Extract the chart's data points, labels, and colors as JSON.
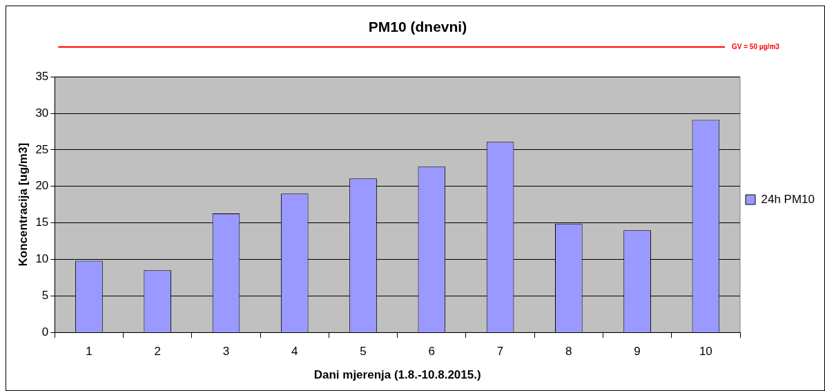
{
  "chart_data": {
    "type": "bar",
    "title": "PM10 (dnevni)",
    "xlabel": "Dani mjerenja (1.8.-10.8.2015.)",
    "ylabel": "Koncentracija [ug/m3]",
    "categories": [
      "1",
      "2",
      "3",
      "4",
      "5",
      "6",
      "7",
      "8",
      "9",
      "10"
    ],
    "series": [
      {
        "name": "24h PM10",
        "color": "#9999ff",
        "values": [
          9.8,
          8.5,
          16.3,
          19.0,
          21.1,
          22.7,
          26.1,
          14.9,
          14.0,
          29.1
        ]
      }
    ],
    "ylim": [
      0,
      35
    ],
    "yticks": [
      0,
      5,
      10,
      15,
      20,
      25,
      30,
      35
    ],
    "grid": "y",
    "legend": "right",
    "annotations": [
      "GV = 50 µg/m3"
    ]
  }
}
